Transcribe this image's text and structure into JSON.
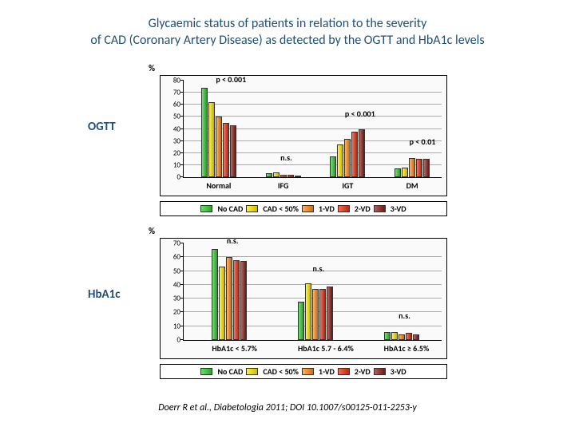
{
  "title_line1": "Glycaemic status of patients in relation to the severity",
  "title_line2": "of CAD (Coronary Artery Disease) as detected by the OGTT and HbA1c levels",
  "citation": "Doerr R et al., Diabetologia 2011; DOI 10.1007/s00125-011-2253-y",
  "colors": {
    "title": "#1f4e79",
    "series": [
      "#33cc33",
      "#ffeb00",
      "#ff8c1a",
      "#e63214",
      "#8a1e14"
    ]
  },
  "series_labels": [
    "No CAD",
    "CAD < 50%",
    "1-VD",
    "2-VD",
    "3-VD"
  ],
  "ylabel": "%",
  "charts": [
    {
      "id": "ogtt",
      "side_label": "OGTT",
      "ymax": 80,
      "ytick_step": 10,
      "categories": [
        "Normal",
        "IFG",
        "IGT",
        "DM"
      ],
      "data": [
        [
          74,
          62,
          50,
          45,
          43
        ],
        [
          3,
          4,
          2,
          2,
          1
        ],
        [
          17,
          27,
          32,
          38,
          40
        ],
        [
          7,
          8,
          16,
          15,
          15
        ]
      ],
      "pvalues": [
        "p < 0.001",
        "n.s.",
        "p < 0.001",
        "p < 0.01"
      ],
      "pvalue_y": [
        77,
        12,
        48,
        25
      ]
    },
    {
      "id": "hba1c",
      "side_label": "HbA1c",
      "ymax": 70,
      "ytick_step": 10,
      "categories": [
        "HbA1c < 5.7%",
        "HbA1c 5.7 - 6.4%",
        "HbA1c ≥ 6.5%"
      ],
      "data": [
        [
          66,
          53,
          60,
          58,
          57
        ],
        [
          28,
          41,
          37,
          37,
          39
        ],
        [
          6,
          6,
          4,
          5,
          4
        ]
      ],
      "pvalues": [
        "n.s.",
        "n.s.",
        "n.s."
      ],
      "pvalue_y": [
        68,
        48,
        14
      ]
    }
  ]
}
